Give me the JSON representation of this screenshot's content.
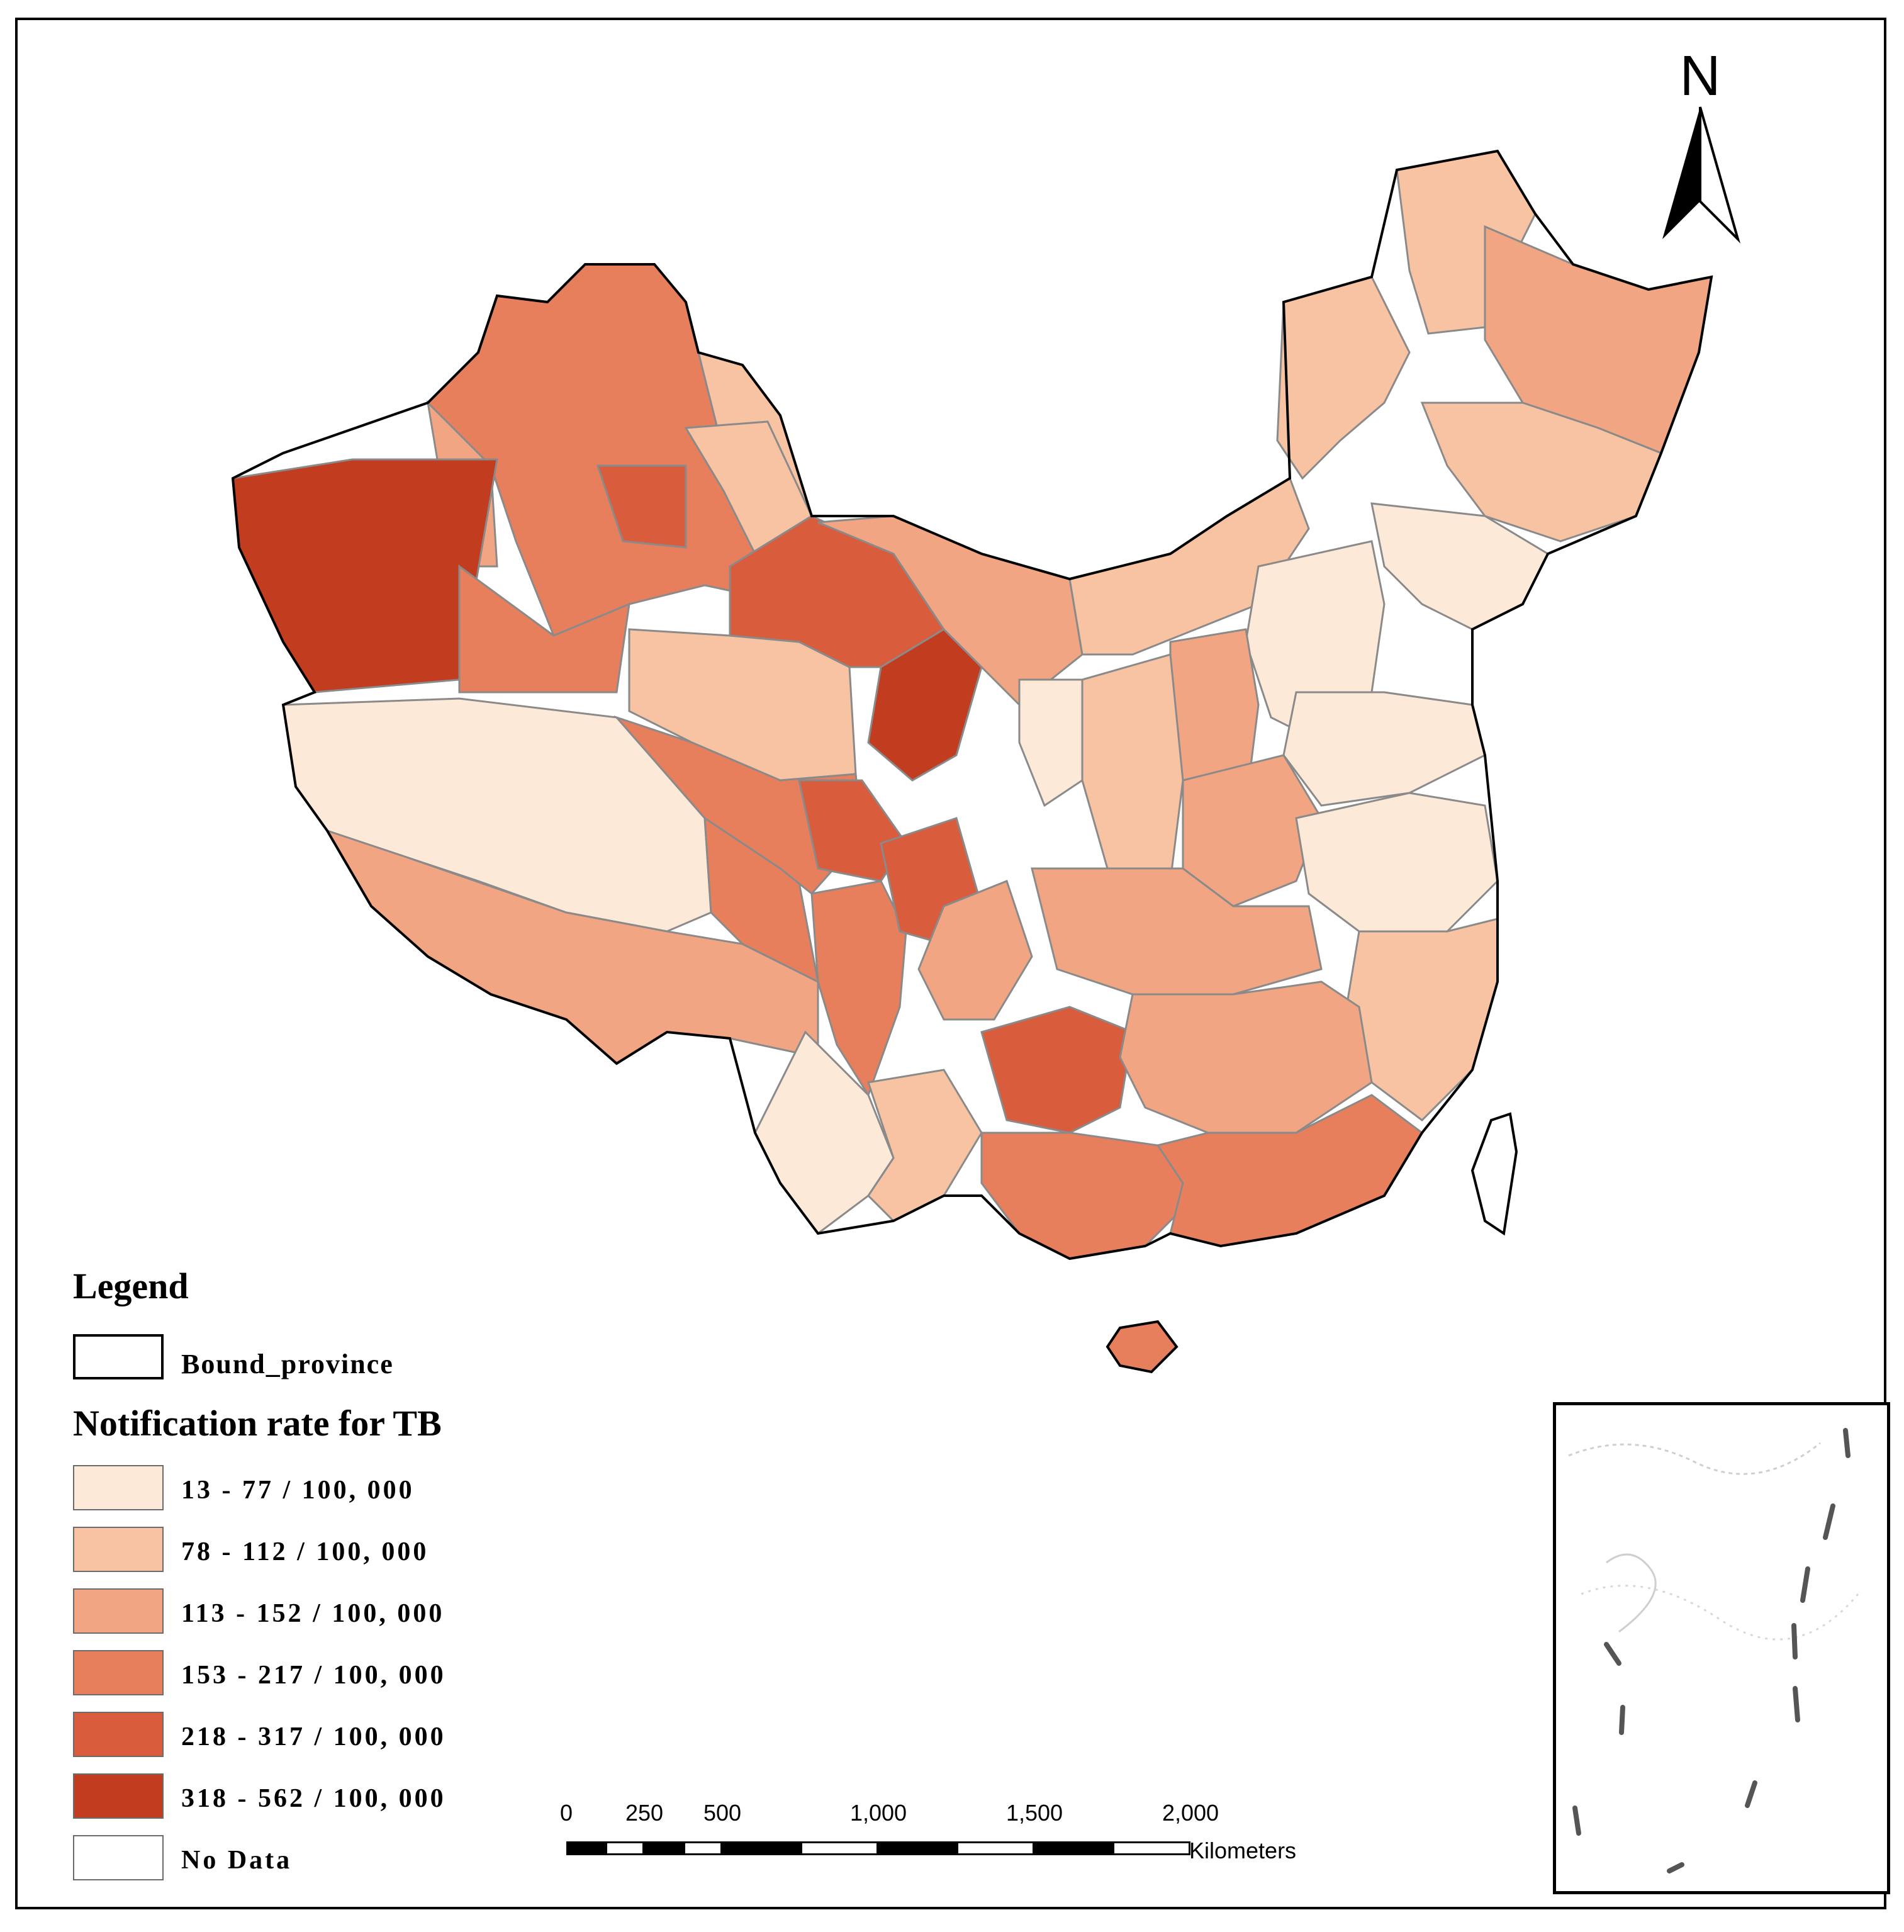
{
  "legend": {
    "title": "Legend",
    "boundary_label": "Bound_province",
    "rate_title": "Notification rate for TB",
    "classes": [
      {
        "label": "13 - 77 / 100, 000",
        "color": "#fde9d8"
      },
      {
        "label": "78 - 112 / 100, 000",
        "color": "#f7c3a3"
      },
      {
        "label": "113 - 152 / 100, 000",
        "color": "#f1a583"
      },
      {
        "label": "153 - 217 / 100, 000",
        "color": "#e77f5d"
      },
      {
        "label": "218 - 317 / 100, 000",
        "color": "#d95c3d"
      },
      {
        "label": "318 - 562 / 100, 000",
        "color": "#c23c1f"
      },
      {
        "label": "No Data",
        "color": "#ffffff"
      }
    ]
  },
  "scale_bar": {
    "ticks": [
      "0",
      "250",
      "500",
      "1,000",
      "1,500",
      "2,000"
    ],
    "unit": "Kilometers"
  },
  "north_arrow": {
    "letter": "N"
  },
  "colors": {
    "border": "#000000",
    "district_line": "#8a8a8a",
    "background": "#ffffff"
  }
}
